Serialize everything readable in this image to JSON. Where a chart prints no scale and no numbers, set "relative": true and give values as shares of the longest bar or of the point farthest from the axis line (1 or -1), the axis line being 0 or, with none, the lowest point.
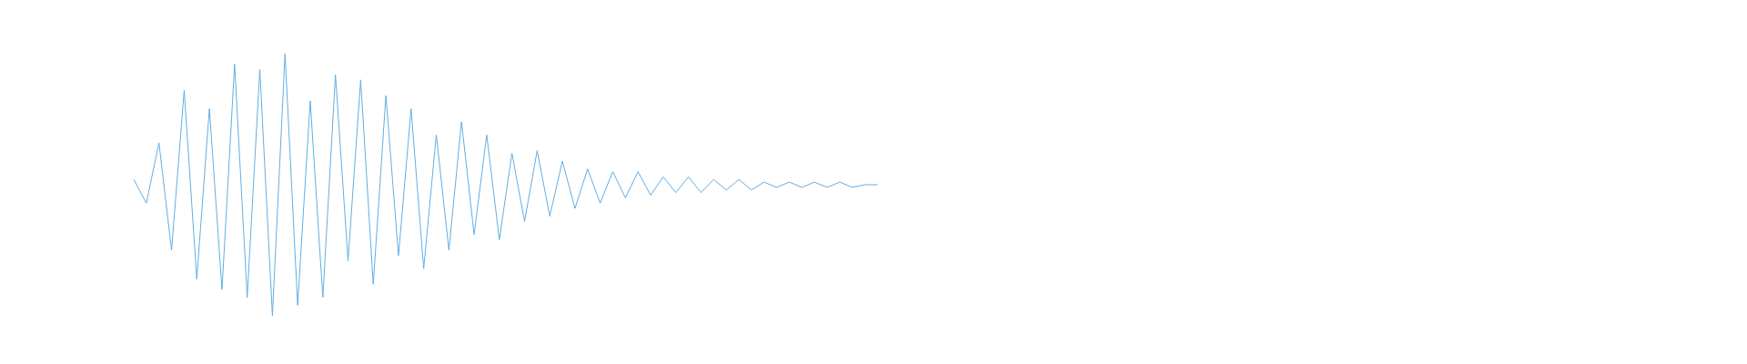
{
  "chart_data": {
    "type": "line",
    "relative": true,
    "categories": [
      null,
      null,
      null,
      null,
      null,
      null,
      null,
      null,
      null,
      null,
      null,
      null,
      null,
      null,
      null,
      null,
      null,
      null,
      null,
      null,
      null,
      null,
      null,
      null,
      null,
      null,
      null,
      null,
      null,
      null,
      null,
      null,
      null,
      null,
      null,
      null,
      null,
      null,
      null,
      null,
      null,
      null,
      null,
      null,
      null,
      null,
      null,
      null,
      null,
      null,
      null,
      null,
      null,
      null,
      null,
      null,
      null,
      null,
      null,
      null,
      null,
      null,
      null,
      null,
      null,
      null,
      null,
      null,
      null,
      null,
      null,
      null,
      null,
      null,
      null,
      null,
      null,
      null,
      null,
      null,
      null,
      null,
      null,
      null,
      null,
      null,
      null,
      null,
      null,
      null,
      null,
      null,
      null,
      null,
      null,
      null,
      null,
      null,
      null,
      null,
      null,
      null,
      null,
      null,
      null,
      null,
      null,
      null,
      null,
      null,
      null,
      null,
      null,
      null,
      null,
      null,
      null,
      null
    ],
    "series": [
      {
        "color": "#62aee3",
        "values": [
          0.52,
          0.43,
          0.66,
          0.25,
          0.86,
          0.14,
          0.79,
          0.1,
          0.96,
          0.07,
          0.94,
          0,
          1,
          0.04,
          0.82,
          0.07,
          0.92,
          0.21,
          0.9,
          0.12,
          0.84,
          0.23,
          0.79,
          0.18,
          0.69,
          0.25,
          0.74,
          0.31,
          0.69,
          0.29,
          0.62,
          0.36,
          0.63,
          0.38,
          0.59,
          0.41,
          0.56,
          0.43,
          0.55,
          0.45,
          0.55,
          0.46,
          0.53,
          0.47,
          0.53,
          0.47,
          0.52,
          0.48,
          0.52,
          0.48,
          0.51,
          0.49,
          0.51,
          0.49,
          0.51,
          0.49,
          0.51,
          0.49,
          0.5,
          0.5,
          null,
          null,
          null,
          null,
          null,
          null,
          null,
          null,
          null,
          null,
          null,
          null,
          null,
          null,
          null,
          null,
          null,
          null,
          null,
          null,
          null,
          null,
          null,
          null,
          null,
          null,
          null,
          null,
          null,
          null,
          null,
          null,
          null,
          null,
          null,
          null,
          null,
          null,
          null,
          null,
          null,
          null,
          null,
          null,
          null,
          null,
          null,
          null,
          null,
          null,
          null,
          null,
          null,
          null,
          null,
          null,
          null,
          null
        ]
      }
    ]
  }
}
